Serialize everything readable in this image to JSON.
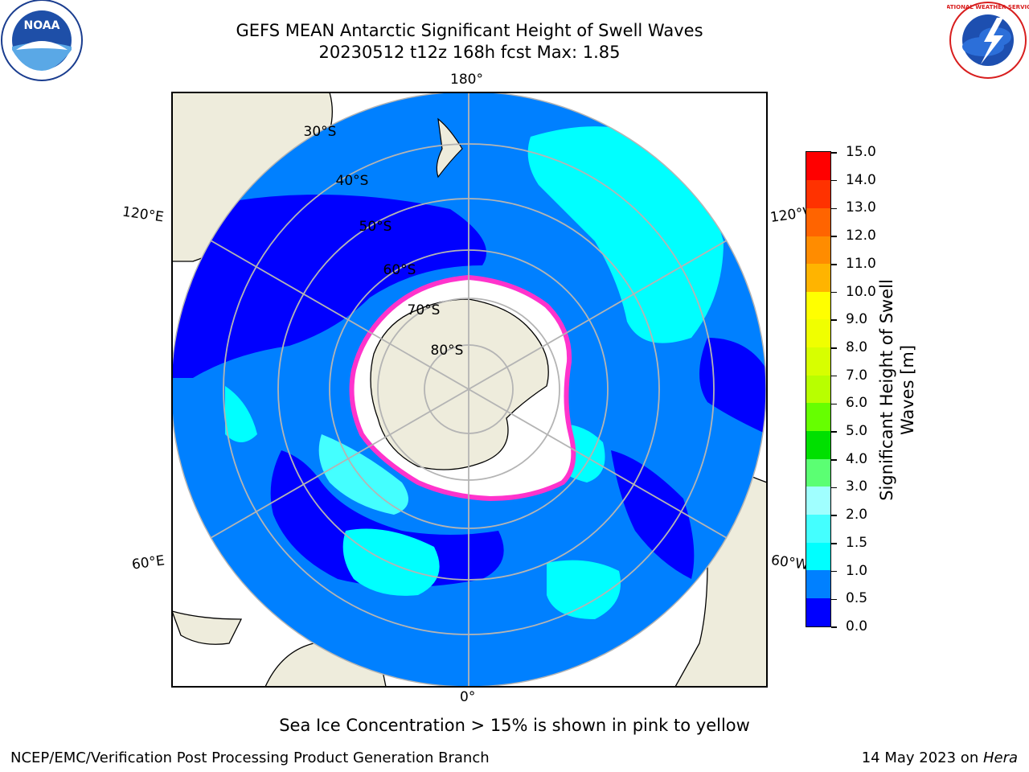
{
  "header": {
    "title_line1": "GEFS MEAN Antarctic Significant Height of Swell Waves",
    "title_line2": "20230512 t12z 168h fcst   Max: 1.85"
  },
  "logos": {
    "left": "noaa-logo",
    "right": "national-weather-service-logo",
    "noaa_text": "NOAA",
    "nws_text": "NATIONAL WEATHER SERVICE"
  },
  "map": {
    "projection": "south-polar-stereographic",
    "longitude_labels": {
      "top": "180°",
      "bottom": "0°",
      "left_upper": "120°E",
      "left_lower": "60°E",
      "right_upper": "120°W",
      "right_lower": "60°W"
    },
    "latitude_labels": [
      "30°S",
      "40°S",
      "50°S",
      "60°S",
      "70°S",
      "80°S"
    ],
    "colors": {
      "land": "#eeecdc",
      "ice_free_zero": "#ffffff",
      "grid": "#b4b4b4",
      "ice_edge": "#ff33cc"
    }
  },
  "colorbar": {
    "title": "Significant Height of Swell Waves [m]",
    "title_line1": "Significant Height of Swell",
    "title_line2": "Waves [m]",
    "tick_labels": [
      "15.0",
      "14.0",
      "13.0",
      "12.0",
      "11.0",
      "10.0",
      "9.0",
      "8.0",
      "7.0",
      "6.0",
      "5.0",
      "4.0",
      "3.0",
      "2.0",
      "1.5",
      "1.0",
      "0.5",
      "0.0"
    ],
    "bins": [
      {
        "range": "0.0–0.5",
        "color": "#0000ff"
      },
      {
        "range": "0.5–1.0",
        "color": "#0080ff"
      },
      {
        "range": "1.0–1.5",
        "color": "#00ffff"
      },
      {
        "range": "1.5–2.0",
        "color": "#44ffff"
      },
      {
        "range": "2.0–3.0",
        "color": "#a0ffff"
      },
      {
        "range": "3.0–4.0",
        "color": "#5bff73"
      },
      {
        "range": "4.0–5.0",
        "color": "#00e000"
      },
      {
        "range": "5.0–6.0",
        "color": "#66ff00"
      },
      {
        "range": "6.0–7.0",
        "color": "#b8ff00"
      },
      {
        "range": "7.0–8.0",
        "color": "#d7ff00"
      },
      {
        "range": "8.0–9.0",
        "color": "#f0ff00"
      },
      {
        "range": "9.0–10.0",
        "color": "#ffff00"
      },
      {
        "range": "10.0–11.0",
        "color": "#ffb400"
      },
      {
        "range": "11.0–12.0",
        "color": "#ff8c00"
      },
      {
        "range": "12.0–13.0",
        "color": "#ff6400"
      },
      {
        "range": "13.0–14.0",
        "color": "#ff3200"
      },
      {
        "range": "14.0–15.0",
        "color": "#ff0000"
      }
    ]
  },
  "caption": "Sea Ice Concentration > 15% is shown in pink to yellow",
  "footer": {
    "left": "NCEP/EMC/Verification Post Processing Product Generation Branch",
    "right_prefix": "14 May 2023 on ",
    "right_host": "Hera"
  }
}
